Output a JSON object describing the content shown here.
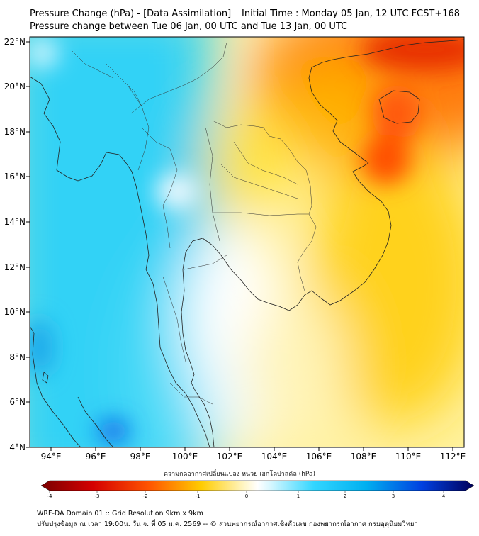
{
  "title_line1": "Pressure Change (hPa) - [Data Assimilation] _ Initial Time : Monday 05 Jan, 12 UTC FCST+168",
  "title_line2": "Pressure change between Tue 06 Jan, 00 UTC and Tue 13 Jan, 00 UTC",
  "map": {
    "lon_ticks": [
      "94°E",
      "96°E",
      "98°E",
      "100°E",
      "102°E",
      "104°E",
      "106°E",
      "108°E",
      "110°E",
      "112°E"
    ],
    "lat_ticks": [
      "22°N",
      "20°N",
      "18°N",
      "16°N",
      "14°N",
      "12°N",
      "10°N",
      "8°N",
      "6°N",
      "4°N"
    ],
    "lon_range": [
      93.0,
      112.5
    ],
    "lat_range": [
      4.0,
      22.2
    ]
  },
  "colorbar": {
    "title": "ความกดอากาศเปลี่ยนแปลง หน่วย เฮกโตปาสคัล (hPa)",
    "ticks": [
      "-4",
      "-3",
      "-2",
      "-1",
      "0",
      "1",
      "2",
      "3",
      "4"
    ],
    "range": [
      -4,
      4
    ],
    "colors": {
      "negative_max": "#7a0000",
      "neutral": "#ffffff",
      "positive_max": "#00005a"
    }
  },
  "footer_line1": "WRF-DA Domain 01 :: Grid Resolution 9km x 9km",
  "footer_line2": "ปรับปรุงข้อมูล ณ เวลา 19:00น. วัน จ. ที่ 05 ม.ค. 2569 -- © ส่วนพยากรณ์อากาศเชิงตัวเลข กองพยากรณ์อากาศ กรมอุตุนิยมวิทยา"
}
